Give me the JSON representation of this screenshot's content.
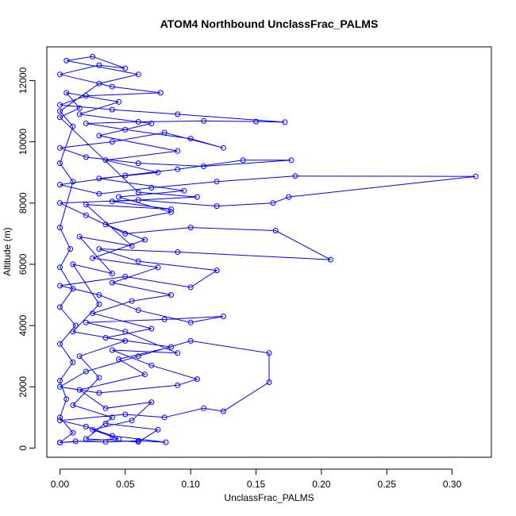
{
  "chart_data": {
    "type": "scatter",
    "title": "ATOM4 Northbound UnclassFrac_PALMS",
    "xlabel": "UnclassFrac_PALMS",
    "ylabel": "Altitude (m)",
    "xlim": [
      -0.01,
      0.33
    ],
    "ylim": [
      -300,
      13100
    ],
    "x_ticks": [
      0.0,
      0.05,
      0.1,
      0.15,
      0.2,
      0.25,
      0.3
    ],
    "x_tick_labels": [
      "0.00",
      "0.05",
      "0.10",
      "0.15",
      "0.20",
      "0.25",
      "0.30"
    ],
    "y_ticks": [
      0,
      2000,
      4000,
      6000,
      8000,
      10000,
      12000
    ],
    "y_tick_labels": [
      "0",
      "2000",
      "4000",
      "6000",
      "8000",
      "10000",
      "12000"
    ],
    "grid": false,
    "legend": "none",
    "marker": "open-circle",
    "connected": true,
    "color": "#0000ff",
    "series": [
      {
        "points": [
          [
            0.0,
            180
          ],
          [
            0.012,
            220
          ],
          [
            0.035,
            200
          ],
          [
            0.06,
            240
          ],
          [
            0.081,
            190
          ],
          [
            0.04,
            400
          ],
          [
            0.02,
            700
          ],
          [
            0.0,
            900
          ],
          [
            0.05,
            1100
          ],
          [
            0.08,
            1000
          ],
          [
            0.11,
            1300
          ],
          [
            0.125,
            1200
          ],
          [
            0.16,
            2150
          ],
          [
            0.16,
            3100
          ],
          [
            0.1,
            3500
          ],
          [
            0.06,
            3000
          ],
          [
            0.02,
            2500
          ],
          [
            0.0,
            2000
          ],
          [
            0.03,
            1800
          ],
          [
            0.09,
            2050
          ],
          [
            0.105,
            2250
          ],
          [
            0.07,
            2700
          ],
          [
            0.04,
            3200
          ],
          [
            0.09,
            3100
          ],
          [
            0.05,
            3800
          ],
          [
            0.02,
            4100
          ],
          [
            0.08,
            4200
          ],
          [
            0.125,
            4300
          ],
          [
            0.1,
            4100
          ],
          [
            0.06,
            4500
          ],
          [
            0.03,
            5000
          ],
          [
            0.0,
            5300
          ],
          [
            0.05,
            5600
          ],
          [
            0.1,
            5250
          ],
          [
            0.12,
            5800
          ],
          [
            0.06,
            6100
          ],
          [
            0.03,
            6500
          ],
          [
            0.09,
            6400
          ],
          [
            0.207,
            6150
          ],
          [
            0.165,
            7100
          ],
          [
            0.1,
            7200
          ],
          [
            0.05,
            7000
          ],
          [
            0.02,
            7600
          ],
          [
            0.0,
            8000
          ],
          [
            0.06,
            8100
          ],
          [
            0.12,
            7900
          ],
          [
            0.163,
            8000
          ],
          [
            0.175,
            8200
          ],
          [
            0.318,
            8870
          ],
          [
            0.18,
            8880
          ],
          [
            0.12,
            8700
          ],
          [
            0.07,
            8500
          ],
          [
            0.03,
            8300
          ],
          [
            0.0,
            8600
          ],
          [
            0.05,
            8900
          ],
          [
            0.09,
            9100
          ],
          [
            0.14,
            9400
          ],
          [
            0.177,
            9400
          ],
          [
            0.11,
            9200
          ],
          [
            0.06,
            9300
          ],
          [
            0.02,
            9500
          ],
          [
            0.0,
            9800
          ],
          [
            0.04,
            10000
          ],
          [
            0.08,
            10300
          ],
          [
            0.125,
            9800
          ],
          [
            0.1,
            10100
          ],
          [
            0.05,
            10400
          ],
          [
            0.02,
            10600
          ],
          [
            0.06,
            10650
          ],
          [
            0.11,
            10680
          ],
          [
            0.15,
            10660
          ],
          [
            0.172,
            10640
          ],
          [
            0.09,
            10900
          ],
          [
            0.04,
            11050
          ],
          [
            0.0,
            11200
          ],
          [
            0.02,
            11500
          ],
          [
            0.077,
            11600
          ],
          [
            0.04,
            11800
          ],
          [
            0.0,
            12200
          ],
          [
            0.03,
            12500
          ],
          [
            0.05,
            12400
          ],
          [
            0.025,
            12780
          ],
          [
            0.005,
            12650
          ],
          [
            0.06,
            12200
          ],
          [
            0.03,
            11900
          ],
          [
            0.0,
            11000
          ],
          [
            0.01,
            10500
          ],
          [
            0.0,
            9300
          ],
          [
            0.01,
            8700
          ],
          [
            0.0,
            7200
          ],
          [
            0.008,
            6500
          ],
          [
            0.0,
            5900
          ],
          [
            0.01,
            5200
          ],
          [
            0.0,
            4600
          ],
          [
            0.012,
            4000
          ],
          [
            0.0,
            3400
          ],
          [
            0.01,
            2800
          ],
          [
            0.0,
            2200
          ],
          [
            0.005,
            1600
          ],
          [
            0.0,
            1000
          ],
          [
            0.01,
            500
          ],
          [
            0.0,
            180
          ],
          [
            0.045,
            300
          ],
          [
            0.025,
            600
          ],
          [
            0.055,
            900
          ],
          [
            0.07,
            1500
          ],
          [
            0.035,
            1300
          ],
          [
            0.015,
            1900
          ],
          [
            0.065,
            2400
          ],
          [
            0.045,
            2900
          ],
          [
            0.085,
            3300
          ],
          [
            0.035,
            3600
          ],
          [
            0.07,
            3900
          ],
          [
            0.025,
            4400
          ],
          [
            0.055,
            4800
          ],
          [
            0.085,
            5000
          ],
          [
            0.04,
            5400
          ],
          [
            0.075,
            5900
          ],
          [
            0.025,
            6200
          ],
          [
            0.065,
            6800
          ],
          [
            0.035,
            7300
          ],
          [
            0.085,
            7700
          ],
          [
            0.045,
            8200
          ],
          [
            0.095,
            8400
          ],
          [
            0.03,
            8800
          ],
          [
            0.075,
            9000
          ],
          [
            0.035,
            9400
          ],
          [
            0.09,
            9700
          ],
          [
            0.03,
            10200
          ],
          [
            0.07,
            10600
          ],
          [
            0.015,
            10900
          ],
          [
            0.045,
            11300
          ],
          [
            0.005,
            11600
          ],
          [
            0.015,
            11100
          ],
          [
            0.0,
            10800
          ],
          [
            0.06,
            8350
          ],
          [
            0.105,
            8200
          ],
          [
            0.04,
            8050
          ],
          [
            0.085,
            7800
          ],
          [
            0.02,
            7950
          ],
          [
            0.055,
            6600
          ],
          [
            0.015,
            6900
          ],
          [
            0.04,
            5700
          ],
          [
            0.01,
            6000
          ],
          [
            0.03,
            4700
          ],
          [
            0.01,
            3800
          ],
          [
            0.05,
            3500
          ],
          [
            0.015,
            3000
          ],
          [
            0.03,
            2300
          ],
          [
            0.01,
            1400
          ],
          [
            0.04,
            1000
          ],
          [
            0.02,
            300
          ],
          [
            0.06,
            200
          ],
          [
            0.075,
            600
          ],
          [
            0.035,
            800
          ]
        ]
      }
    ]
  }
}
